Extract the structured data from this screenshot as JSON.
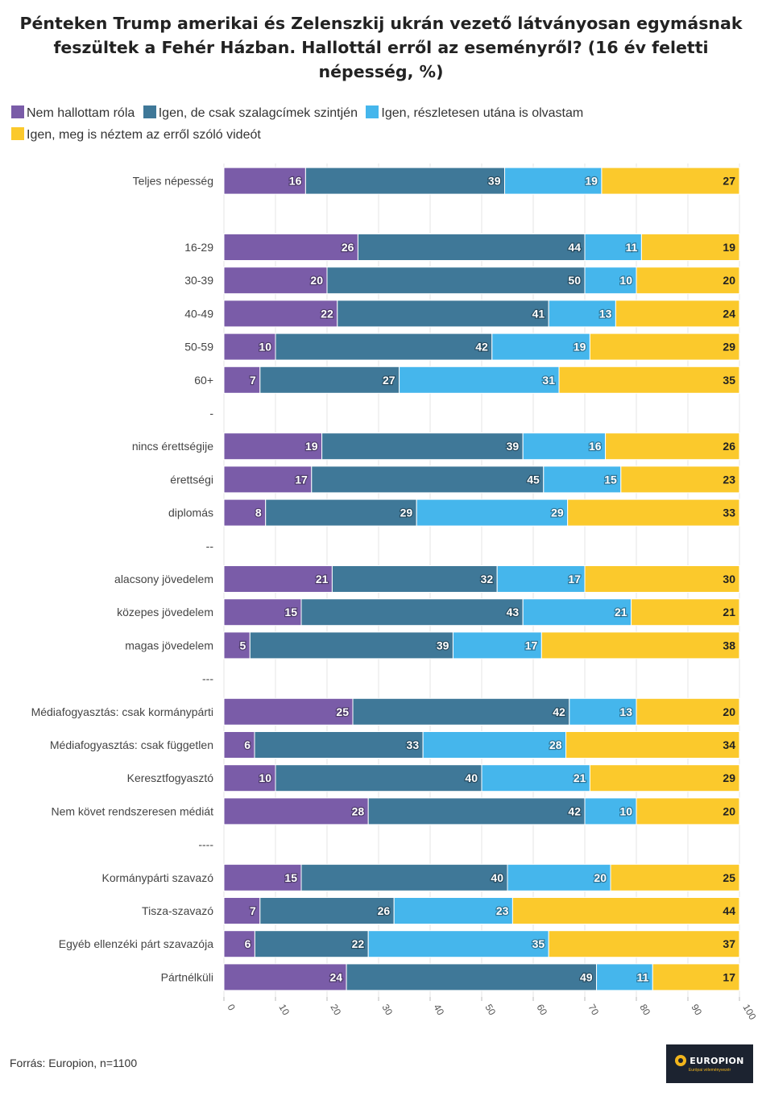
{
  "title_lines": [
    "Pénteken Trump amerikai és Zelenszkij ukrán vezető látványosan egymásnak",
    "feszültek a Fehér Házban. Hallottál erről az eseményről? (16 év feletti",
    "népesség, %)"
  ],
  "source": "Forrás: Europion, n=1100",
  "logo": {
    "text": "EUROPION",
    "subtext": "Európai véleményvezér"
  },
  "chart_data": {
    "type": "bar",
    "orientation": "horizontal",
    "stacked": true,
    "xlim": [
      0,
      100
    ],
    "x_ticks": [
      0,
      10,
      20,
      30,
      40,
      50,
      60,
      70,
      80,
      90,
      100
    ],
    "grid": true,
    "legend_position": "top",
    "series": [
      {
        "name": "Nem hallottam róla",
        "color": "#7a5ca8"
      },
      {
        "name": "Igen, de csak szalagcímek szintjén",
        "color": "#3f7898"
      },
      {
        "name": "Igen, részletesen utána is olvastam",
        "color": "#45b6ec"
      },
      {
        "name": "Igen, meg is néztem az erről szóló videót",
        "color": "#fbc92c"
      }
    ],
    "rows": [
      {
        "label": "Teljes népesség",
        "values": [
          16,
          39,
          19,
          27
        ]
      },
      {
        "label": "",
        "values": null
      },
      {
        "label": "16-29",
        "values": [
          26,
          44,
          11,
          19
        ]
      },
      {
        "label": "30-39",
        "values": [
          20,
          50,
          10,
          20
        ]
      },
      {
        "label": "40-49",
        "values": [
          22,
          41,
          13,
          24
        ]
      },
      {
        "label": "50-59",
        "values": [
          10,
          42,
          19,
          29
        ]
      },
      {
        "label": "60+",
        "values": [
          7,
          27,
          31,
          35
        ]
      },
      {
        "label": "-",
        "values": null
      },
      {
        "label": "nincs érettségije",
        "values": [
          19,
          39,
          16,
          26
        ]
      },
      {
        "label": "érettségi",
        "values": [
          17,
          45,
          15,
          23
        ]
      },
      {
        "label": "diplomás",
        "values": [
          8,
          29,
          29,
          33
        ]
      },
      {
        "label": "--",
        "values": null
      },
      {
        "label": "alacsony jövedelem",
        "values": [
          21,
          32,
          17,
          30
        ]
      },
      {
        "label": "közepes jövedelem",
        "values": [
          15,
          43,
          21,
          21
        ]
      },
      {
        "label": "magas jövedelem",
        "values": [
          5,
          39,
          17,
          38
        ]
      },
      {
        "label": "---",
        "values": null
      },
      {
        "label": "Médiafogyasztás: csak kormánypárti",
        "values": [
          25,
          42,
          13,
          20
        ]
      },
      {
        "label": "Médiafogyasztás: csak független",
        "values": [
          6,
          33,
          28,
          34
        ]
      },
      {
        "label": "Keresztfogyasztó",
        "values": [
          10,
          40,
          21,
          29
        ]
      },
      {
        "label": "Nem követ rendszeresen médiát",
        "values": [
          28,
          42,
          10,
          20
        ]
      },
      {
        "label": "----",
        "values": null
      },
      {
        "label": "Kormánypárti szavazó",
        "values": [
          15,
          40,
          20,
          25
        ]
      },
      {
        "label": "Tisza-szavazó",
        "values": [
          7,
          26,
          23,
          44
        ]
      },
      {
        "label": "Egyéb ellenzéki párt szavazója",
        "values": [
          6,
          22,
          35,
          37
        ]
      },
      {
        "label": "Pártnélküli",
        "values": [
          24,
          49,
          11,
          17
        ]
      }
    ]
  }
}
